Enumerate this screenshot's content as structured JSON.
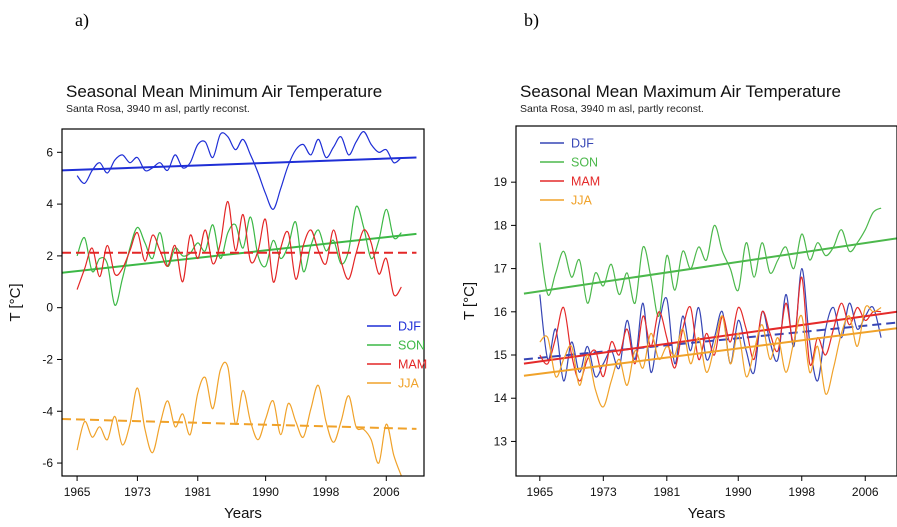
{
  "panels": [
    "a)",
    "b)"
  ],
  "chart_data": [
    {
      "type": "line",
      "title": "Seasonal Mean Minimum Air Temperature",
      "subtitle": "Santa Rosa, 3940 m asl, partly reconst.",
      "xlabel": "Years",
      "ylabel": "T [°C]",
      "xlim": [
        1963,
        2011
      ],
      "ylim": [
        -6.5,
        6.9
      ],
      "x_ticks": [
        1965,
        1973,
        1981,
        1990,
        1998,
        2006
      ],
      "x_tick_labels": [
        "1965",
        "1973",
        "1981",
        "1990",
        "1998",
        "2006"
      ],
      "y_ticks": [
        -6,
        -4,
        -2,
        0,
        2,
        4,
        6
      ],
      "y_tick_labels": [
        "-6",
        "-4",
        "-2",
        "0",
        "2",
        "4",
        "6"
      ],
      "legend_position": "right, middle",
      "series": [
        {
          "name": "DJF",
          "color": "#1f2fd6",
          "x": [
            1965,
            1966,
            1967,
            1968,
            1969,
            1970,
            1971,
            1972,
            1973,
            1974,
            1975,
            1976,
            1977,
            1978,
            1979,
            1980,
            1981,
            1982,
            1983,
            1984,
            1985,
            1986,
            1987,
            1988,
            1989,
            1990,
            1991,
            1992,
            1993,
            1994,
            1995,
            1996,
            1997,
            1998,
            1999,
            2000,
            2001,
            2002,
            2003,
            2004,
            2005,
            2006,
            2007,
            2008
          ],
          "y": [
            5.1,
            4.8,
            5.3,
            5.6,
            5.2,
            5.7,
            5.9,
            5.6,
            5.8,
            5.3,
            5.4,
            5.6,
            5.3,
            5.9,
            5.4,
            5.6,
            6.3,
            6.4,
            5.8,
            6.7,
            6.6,
            6.1,
            6.5,
            5.9,
            5.2,
            4.4,
            3.8,
            4.6,
            5.5,
            6.1,
            6.3,
            5.9,
            6.5,
            5.8,
            6.2,
            6.6,
            5.9,
            6.4,
            6.8,
            6.3,
            6.0,
            6.1,
            5.6,
            5.8
          ],
          "trend": {
            "x": [
              1963,
              2010
            ],
            "y": [
              5.3,
              5.8
            ],
            "style": "solid"
          }
        },
        {
          "name": "SON",
          "color": "#3cb846",
          "x": [
            1965,
            1966,
            1967,
            1968,
            1969,
            1970,
            1971,
            1972,
            1973,
            1974,
            1975,
            1976,
            1977,
            1978,
            1979,
            1980,
            1981,
            1982,
            1983,
            1984,
            1985,
            1986,
            1987,
            1988,
            1989,
            1990,
            1991,
            1992,
            1993,
            1994,
            1995,
            1996,
            1997,
            1998,
            1999,
            2000,
            2001,
            2002,
            2003,
            2004,
            2005,
            2006,
            2007,
            2008
          ],
          "y": [
            2.0,
            2.7,
            1.4,
            1.9,
            1.7,
            0.1,
            1.1,
            2.3,
            3.1,
            2.5,
            1.9,
            2.9,
            1.6,
            2.3,
            2.0,
            2.1,
            2.5,
            2.2,
            3.2,
            1.9,
            2.9,
            3.2,
            2.3,
            3.5,
            2.0,
            1.6,
            2.6,
            1.9,
            2.4,
            3.3,
            1.4,
            2.4,
            3.0,
            2.2,
            2.6,
            1.7,
            2.2,
            3.9,
            3.1,
            1.9,
            2.6,
            3.8,
            2.7,
            2.9
          ],
          "trend": {
            "x": [
              1963,
              2010
            ],
            "y": [
              1.35,
              2.85
            ],
            "style": "solid"
          }
        },
        {
          "name": "MAM",
          "color": "#e32626",
          "x": [
            1965,
            1966,
            1967,
            1968,
            1969,
            1970,
            1971,
            1972,
            1973,
            1974,
            1975,
            1976,
            1977,
            1978,
            1979,
            1980,
            1981,
            1982,
            1983,
            1984,
            1985,
            1986,
            1987,
            1988,
            1989,
            1990,
            1991,
            1992,
            1993,
            1994,
            1995,
            1996,
            1997,
            1998,
            1999,
            2000,
            2001,
            2002,
            2003,
            2004,
            2005,
            2006,
            2007,
            2008
          ],
          "y": [
            0.7,
            1.5,
            2.3,
            1.2,
            2.4,
            1.3,
            1.5,
            2.2,
            2.9,
            1.8,
            2.8,
            2.2,
            1.6,
            2.4,
            1.0,
            2.8,
            1.9,
            3.0,
            1.7,
            2.5,
            4.1,
            2.2,
            3.6,
            1.8,
            2.2,
            3.4,
            1.0,
            2.3,
            2.9,
            1.1,
            2.4,
            3.0,
            2.2,
            1.7,
            3.0,
            1.8,
            1.1,
            2.1,
            3.0,
            2.5,
            1.3,
            1.9,
            0.5,
            0.8
          ],
          "trend": {
            "x": [
              1963,
              2010
            ],
            "y": [
              2.12,
              2.12
            ],
            "style": "dashed"
          }
        },
        {
          "name": "JJA",
          "color": "#f0a22a",
          "x": [
            1965,
            1966,
            1967,
            1968,
            1969,
            1970,
            1971,
            1972,
            1973,
            1974,
            1975,
            1976,
            1977,
            1978,
            1979,
            1980,
            1981,
            1982,
            1983,
            1984,
            1985,
            1986,
            1987,
            1988,
            1989,
            1990,
            1991,
            1992,
            1993,
            1994,
            1995,
            1996,
            1997,
            1998,
            1999,
            2000,
            2001,
            2002,
            2003,
            2004,
            2005,
            2006,
            2007,
            2008
          ],
          "y": [
            -5.5,
            -4.4,
            -5.0,
            -4.6,
            -5.1,
            -4.2,
            -5.3,
            -4.5,
            -3.1,
            -4.7,
            -5.6,
            -4.5,
            -3.6,
            -4.6,
            -4.1,
            -4.9,
            -3.3,
            -2.7,
            -3.9,
            -2.4,
            -2.3,
            -4.5,
            -3.2,
            -4.4,
            -5.1,
            -4.3,
            -3.6,
            -4.9,
            -3.7,
            -4.4,
            -5.0,
            -3.9,
            -3.0,
            -4.4,
            -5.2,
            -4.4,
            -3.4,
            -4.6,
            -4.7,
            -5.1,
            -6.0,
            -4.5,
            -5.7,
            -6.5
          ],
          "trend": {
            "x": [
              1963,
              2010
            ],
            "y": [
              -4.3,
              -4.68
            ],
            "style": "dashed"
          }
        }
      ]
    },
    {
      "type": "line",
      "title": "Seasonal Mean Maximum Air Temperature",
      "subtitle": "Santa Rosa, 3940 m asl, partly reconst.",
      "xlabel": "Years",
      "ylabel": "T [°C]",
      "xlim": [
        1962,
        2010
      ],
      "ylim": [
        12.2,
        20.3
      ],
      "x_ticks": [
        1965,
        1973,
        1981,
        1990,
        1998,
        2006
      ],
      "x_tick_labels": [
        "1965",
        "1973",
        "1981",
        "1990",
        "1998",
        "2006"
      ],
      "y_ticks": [
        13,
        14,
        15,
        16,
        17,
        18,
        19
      ],
      "y_tick_labels": [
        "13",
        "14",
        "15",
        "16",
        "17",
        "18",
        "19"
      ],
      "legend_position": "top-left",
      "series": [
        {
          "name": "DJF",
          "color": "#3746b5",
          "x": [
            1965,
            1966,
            1967,
            1968,
            1969,
            1970,
            1971,
            1972,
            1973,
            1974,
            1975,
            1976,
            1977,
            1978,
            1979,
            1980,
            1981,
            1982,
            1983,
            1984,
            1985,
            1986,
            1987,
            1988,
            1989,
            1990,
            1991,
            1992,
            1993,
            1994,
            1995,
            1996,
            1997,
            1998,
            1999,
            2000,
            2001,
            2002,
            2003,
            2004,
            2005,
            2006,
            2007,
            2008
          ],
          "y": [
            16.4,
            14.9,
            15.6,
            14.4,
            15.3,
            14.6,
            15.2,
            14.5,
            14.8,
            15.1,
            14.7,
            15.8,
            14.9,
            16.2,
            14.6,
            15.7,
            16.3,
            14.8,
            15.9,
            15.1,
            16.1,
            14.9,
            15.4,
            16.0,
            14.8,
            15.8,
            15.1,
            14.6,
            16.0,
            15.3,
            14.9,
            16.4,
            15.2,
            17.0,
            15.3,
            14.4,
            15.6,
            16.1,
            15.4,
            16.2,
            15.6,
            15.9,
            16.1,
            15.4
          ],
          "trend": {
            "x": [
              1963,
              2010
            ],
            "y": [
              14.9,
              15.75
            ],
            "style": "dashed"
          }
        },
        {
          "name": "SON",
          "color": "#4cb84c",
          "x": [
            1965,
            1966,
            1967,
            1968,
            1969,
            1970,
            1971,
            1972,
            1973,
            1974,
            1975,
            1976,
            1977,
            1978,
            1979,
            1980,
            1981,
            1982,
            1983,
            1984,
            1985,
            1986,
            1987,
            1988,
            1989,
            1990,
            1991,
            1992,
            1993,
            1994,
            1995,
            1996,
            1997,
            1998,
            1999,
            2000,
            2001,
            2002,
            2003,
            2004,
            2005,
            2006,
            2007,
            2008
          ],
          "y": [
            17.6,
            16.4,
            16.9,
            17.4,
            16.8,
            17.2,
            16.2,
            16.9,
            16.6,
            17.1,
            16.4,
            16.9,
            16.2,
            17.5,
            16.8,
            15.9,
            17.3,
            16.5,
            17.4,
            17.0,
            17.5,
            17.2,
            18.0,
            17.4,
            17.0,
            16.5,
            17.6,
            16.8,
            17.6,
            16.9,
            17.2,
            17.5,
            17.0,
            17.8,
            17.2,
            17.6,
            17.3,
            17.5,
            17.9,
            17.4,
            17.6,
            17.9,
            18.3,
            18.4
          ],
          "trend": {
            "x": [
              1963,
              2010
            ],
            "y": [
              16.42,
              17.7
            ],
            "style": "solid"
          }
        },
        {
          "name": "MAM",
          "color": "#e42a2a",
          "x": [
            1965,
            1966,
            1967,
            1968,
            1969,
            1970,
            1971,
            1972,
            1973,
            1974,
            1975,
            1976,
            1977,
            1978,
            1979,
            1980,
            1981,
            1982,
            1983,
            1984,
            1985,
            1986,
            1987,
            1988,
            1989,
            1990,
            1991,
            1992,
            1993,
            1994,
            1995,
            1996,
            1997,
            1998,
            1999,
            2000,
            2001,
            2002,
            2003,
            2004,
            2005,
            2006,
            2007,
            2008
          ],
          "y": [
            15.0,
            14.8,
            15.4,
            16.1,
            15.0,
            14.4,
            14.9,
            15.1,
            14.5,
            15.3,
            15.0,
            15.6,
            14.8,
            15.9,
            15.2,
            16.0,
            15.4,
            14.7,
            15.6,
            16.1,
            14.9,
            15.5,
            15.0,
            15.9,
            15.3,
            16.1,
            15.6,
            14.9,
            16.0,
            15.5,
            15.1,
            16.2,
            15.3,
            16.8,
            14.8,
            15.4,
            15.0,
            15.6,
            16.2,
            15.7,
            16.1,
            15.8,
            16.0,
            16.0
          ],
          "trend": {
            "x": [
              1963,
              2010
            ],
            "y": [
              14.8,
              16.0
            ],
            "style": "solid"
          }
        },
        {
          "name": "JJA",
          "color": "#f0a22a",
          "x": [
            1965,
            1966,
            1967,
            1968,
            1969,
            1970,
            1971,
            1972,
            1973,
            1974,
            1975,
            1976,
            1977,
            1978,
            1979,
            1980,
            1981,
            1982,
            1983,
            1984,
            1985,
            1986,
            1987,
            1988,
            1989,
            1990,
            1991,
            1992,
            1993,
            1994,
            1995,
            1996,
            1997,
            1998,
            1999,
            2000,
            2001,
            2002,
            2003,
            2004,
            2005,
            2006,
            2007,
            2008
          ],
          "y": [
            15.3,
            15.4,
            14.5,
            14.9,
            15.2,
            14.3,
            15.0,
            14.2,
            13.8,
            14.4,
            14.9,
            14.3,
            15.1,
            14.7,
            15.5,
            14.9,
            15.2,
            15.0,
            15.6,
            14.8,
            15.4,
            14.6,
            15.2,
            15.9,
            14.8,
            15.5,
            14.5,
            15.1,
            15.7,
            14.9,
            15.4,
            14.6,
            15.3,
            15.9,
            14.6,
            15.2,
            14.1,
            14.7,
            15.5,
            15.9,
            15.2,
            16.1,
            16.0,
            16.1
          ],
          "trend": {
            "x": [
              1963,
              2010
            ],
            "y": [
              14.52,
              15.62
            ],
            "style": "solid"
          }
        }
      ]
    }
  ]
}
